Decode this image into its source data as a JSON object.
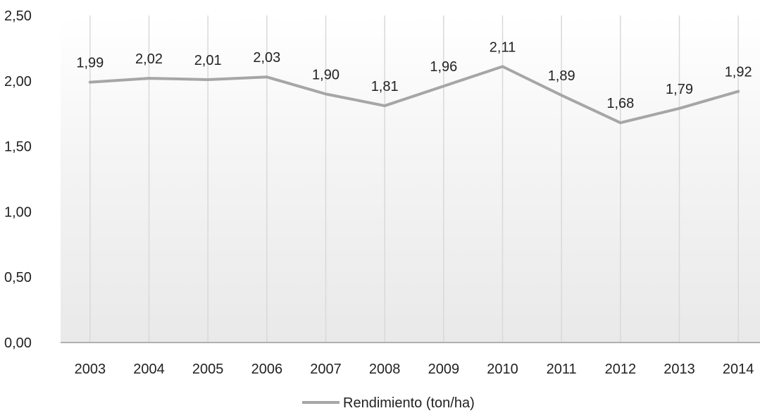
{
  "chart_data": {
    "type": "line",
    "title": "",
    "xlabel": "",
    "ylabel": "",
    "categories": [
      "2003",
      "2004",
      "2005",
      "2006",
      "2007",
      "2008",
      "2009",
      "2010",
      "2011",
      "2012",
      "2013",
      "2014"
    ],
    "series": [
      {
        "name": "Rendimiento (ton/ha)",
        "values": [
          1.99,
          2.02,
          2.01,
          2.03,
          1.9,
          1.81,
          1.96,
          2.11,
          1.89,
          1.68,
          1.79,
          1.92
        ],
        "labels": [
          "1,99",
          "2,02",
          "2,01",
          "2,03",
          "1,90",
          "1,81",
          "1,96",
          "2,11",
          "1,89",
          "1,68",
          "1,79",
          "1,92"
        ]
      }
    ],
    "ylim": [
      0,
      2.5
    ],
    "yticks": [
      0,
      0.5,
      1.0,
      1.5,
      2.0,
      2.5
    ],
    "ytick_labels": [
      "0,00",
      "0,50",
      "1,00",
      "1,50",
      "2,00",
      "2,50"
    ],
    "grid": "vertical",
    "legend_position": "bottom",
    "colors": {
      "line": "#a6a6a6",
      "gridline": "#d9d9d9",
      "axis": "#999999",
      "text": "#222222"
    }
  }
}
